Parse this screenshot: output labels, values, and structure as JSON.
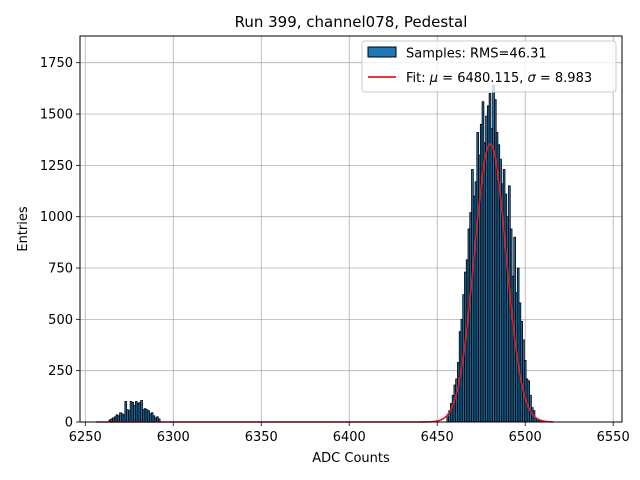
{
  "chart_data": {
    "type": "bar",
    "title": "Run 399, channel078, Pedestal",
    "xlabel": "ADC Counts",
    "ylabel": "Entries",
    "xlim": [
      6247,
      6555
    ],
    "ylim": [
      0,
      1880
    ],
    "xticks": [
      6250,
      6300,
      6350,
      6400,
      6450,
      6500,
      6550
    ],
    "yticks": [
      0,
      250,
      500,
      750,
      1000,
      1250,
      1500,
      1750
    ],
    "grid": true,
    "legend_position": "top-right",
    "bin_width": 1,
    "bar_color": "#1f77b4",
    "bar_edge_color": "#000000",
    "fit_color": "#e31a1c",
    "legend": {
      "samples_label": "Samples: RMS=46.31",
      "fit_prefix": "Fit: ",
      "fit_mu_symbol": "μ",
      "fit_mu_text": " = 6480.115, ",
      "fit_sigma_symbol": "σ",
      "fit_sigma_text": " = 8.983"
    },
    "fit": {
      "mu": 6480.115,
      "sigma": 8.983,
      "amplitude": 1355,
      "x_range": [
        6256,
        6516
      ]
    },
    "bins": [
      [
        6264,
        10
      ],
      [
        6265,
        15
      ],
      [
        6266,
        20
      ],
      [
        6267,
        25
      ],
      [
        6268,
        35
      ],
      [
        6269,
        30
      ],
      [
        6270,
        45
      ],
      [
        6271,
        40
      ],
      [
        6272,
        35
      ],
      [
        6273,
        100
      ],
      [
        6274,
        60
      ],
      [
        6275,
        55
      ],
      [
        6276,
        100
      ],
      [
        6277,
        95
      ],
      [
        6278,
        80
      ],
      [
        6279,
        100
      ],
      [
        6280,
        90
      ],
      [
        6281,
        95
      ],
      [
        6282,
        105
      ],
      [
        6283,
        60
      ],
      [
        6284,
        65
      ],
      [
        6285,
        60
      ],
      [
        6286,
        55
      ],
      [
        6287,
        40
      ],
      [
        6288,
        45
      ],
      [
        6289,
        30
      ],
      [
        6290,
        20
      ],
      [
        6291,
        25
      ],
      [
        6292,
        15
      ],
      [
        6456,
        25
      ],
      [
        6457,
        55
      ],
      [
        6458,
        90
      ],
      [
        6459,
        130
      ],
      [
        6460,
        180
      ],
      [
        6461,
        210
      ],
      [
        6462,
        290
      ],
      [
        6463,
        440
      ],
      [
        6464,
        500
      ],
      [
        6465,
        620
      ],
      [
        6466,
        730
      ],
      [
        6467,
        790
      ],
      [
        6468,
        940
      ],
      [
        6469,
        1020
      ],
      [
        6470,
        1230
      ],
      [
        6471,
        1100
      ],
      [
        6472,
        1170
      ],
      [
        6473,
        1410
      ],
      [
        6474,
        1300
      ],
      [
        6475,
        1450
      ],
      [
        6476,
        1560
      ],
      [
        6477,
        1360
      ],
      [
        6478,
        1490
      ],
      [
        6479,
        1540
      ],
      [
        6480,
        1600
      ],
      [
        6481,
        1430
      ],
      [
        6482,
        1640
      ],
      [
        6483,
        1570
      ],
      [
        6484,
        1410
      ],
      [
        6485,
        1350
      ],
      [
        6486,
        1280
      ],
      [
        6487,
        1160
      ],
      [
        6488,
        1230
      ],
      [
        6489,
        1110
      ],
      [
        6490,
        1000
      ],
      [
        6491,
        1150
      ],
      [
        6492,
        940
      ],
      [
        6493,
        710
      ],
      [
        6494,
        900
      ],
      [
        6495,
        630
      ],
      [
        6496,
        750
      ],
      [
        6497,
        580
      ],
      [
        6498,
        490
      ],
      [
        6499,
        400
      ],
      [
        6500,
        300
      ],
      [
        6501,
        210
      ],
      [
        6502,
        200
      ],
      [
        6503,
        130
      ],
      [
        6504,
        70
      ],
      [
        6505,
        55
      ],
      [
        6506,
        20
      ],
      [
        6507,
        15
      ],
      [
        6508,
        8
      ],
      [
        6509,
        5
      ]
    ]
  }
}
